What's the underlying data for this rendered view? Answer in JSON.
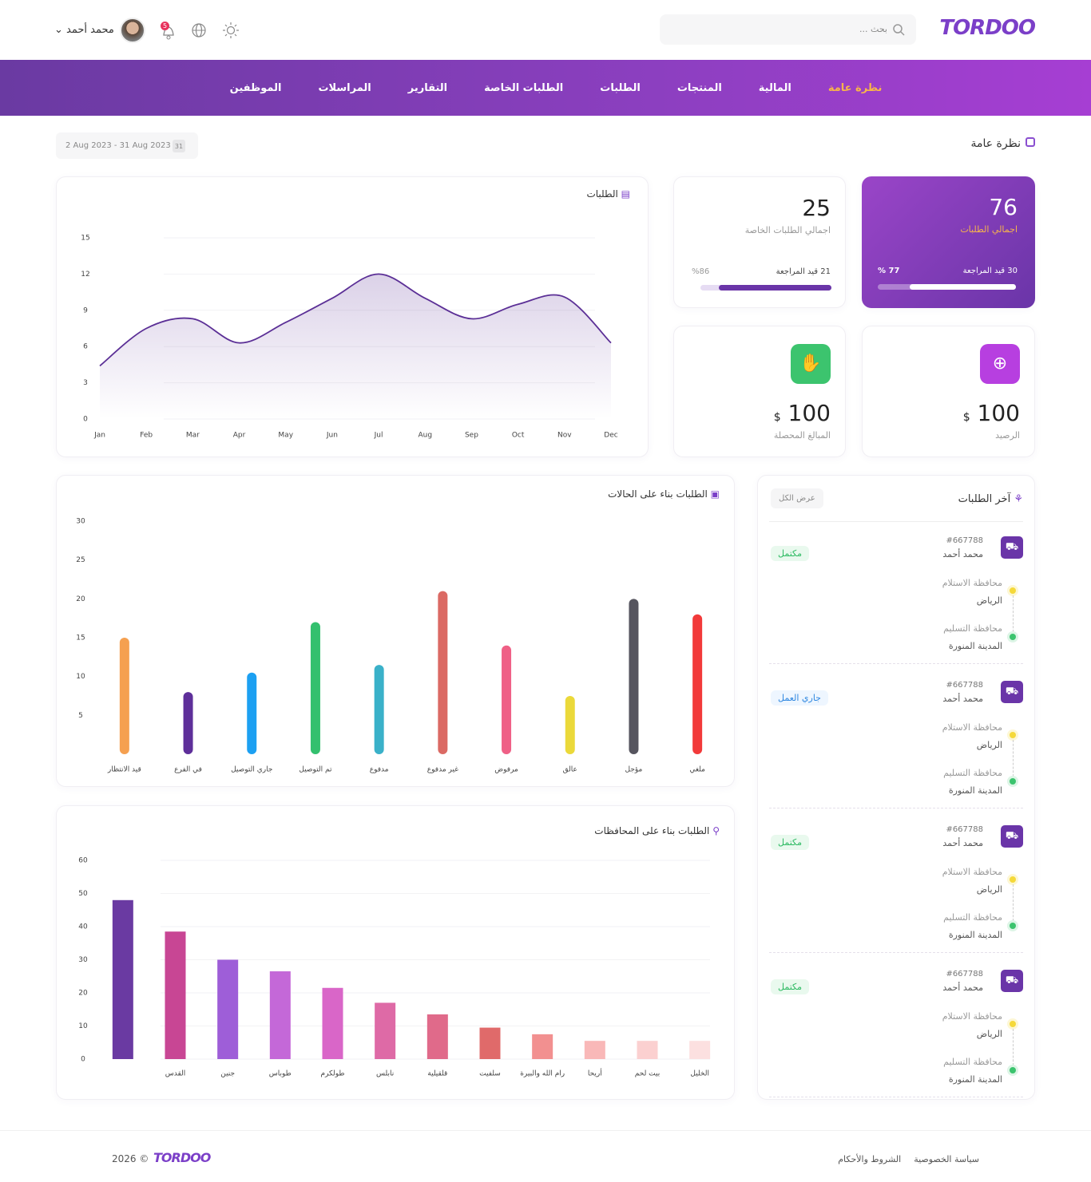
{
  "header": {
    "logo": "TORDOO",
    "search_placeholder": "بحث ...",
    "user_name": "محمد أحمد",
    "notifications": "5"
  },
  "nav": [
    "نظرة عامة",
    "المالية",
    "المنتجات",
    "الطلبات",
    "الطلبات الخاصة",
    "التقارير",
    "المراسلات",
    "الموظفين"
  ],
  "page_title": "نظرة عامة",
  "date_range": "2 Aug 2023 - 31 Aug 2023",
  "date_icon": "31",
  "stats": [
    {
      "value": 76,
      "label": "اجمالي الطلبات",
      "pending": 30,
      "pending_label": "قيد المراجعة",
      "progress": {
        "value": 77,
        "label": "% 77"
      }
    },
    {
      "value": 25,
      "label": "اجمالي الطلبات الخاصة",
      "pending": 21,
      "pending_label": "قيد المراجعة",
      "progress": {
        "value": 86,
        "label": "%86"
      }
    },
    {
      "value": 100,
      "currency": "$",
      "label": "الرصيد"
    },
    {
      "value": 100,
      "currency": "$",
      "label": "المبالغ المحصلة"
    }
  ],
  "chart_data": [
    {
      "type": "line",
      "title": "الطلبات",
      "categories": [
        "Jan",
        "Feb",
        "Mar",
        "Apr",
        "May",
        "Jun",
        "Jul",
        "Aug",
        "Sep",
        "Oct",
        "Nov",
        "Dec"
      ],
      "values": [
        4.4,
        7.5,
        8.3,
        6.3,
        8,
        10,
        12,
        10,
        8.3,
        9.5,
        10.1,
        6.3
      ],
      "color": "#5b2f96",
      "ylim": [
        0,
        15
      ],
      "yticks": [
        0,
        3,
        6,
        9,
        12,
        15
      ],
      "grid": true
    },
    {
      "type": "bar",
      "title": "الطلبات بناء على الحالات",
      "categories": [
        "قيد الانتظار",
        "في الفرع",
        "جاري التوصيل",
        "تم التوصيل",
        "مدفوع",
        "غير مدفوع",
        "مرفوض",
        "عالق",
        "مؤجل",
        "ملغي"
      ],
      "values": [
        15,
        8,
        10.5,
        17,
        11.5,
        21,
        14,
        7.5,
        20,
        18
      ],
      "colors": [
        "#f5a050",
        "#5e2f9a",
        "#1ca0f2",
        "#33c06e",
        "#3ab1c9",
        "#db6a64",
        "#ef6086",
        "#ebd93a",
        "#56555f",
        "#f23a3a"
      ],
      "ylim": [
        0,
        30
      ],
      "yticks": [
        5,
        10,
        15,
        20,
        25,
        30
      ],
      "grid": false
    },
    {
      "type": "bar",
      "title": "الطلبات بناء على المحافظات",
      "categories": [
        null,
        "القدس",
        "جنين",
        "طوباس",
        "طولكرم",
        "نابلس",
        "قلقيلية",
        "سلفيت",
        "رام الله والبيرة",
        "أريحا",
        "بيت لحم",
        "الخليل"
      ],
      "values": [
        48,
        38.5,
        30,
        26.5,
        21.5,
        17,
        13.5,
        9.5,
        7.5,
        5.5,
        5.5,
        5.5
      ],
      "colors": [
        "#6a3aa2",
        "#c84694",
        "#9e5ed8",
        "#c468d8",
        "#d966c8",
        "#de6aa6",
        "#e06a8a",
        "#e06a6a",
        "#f29090",
        "#f9b8b8",
        "#fbd0d0",
        "#fce0e0"
      ],
      "ylim": [
        0,
        60
      ],
      "yticks": [
        0,
        10,
        20,
        30,
        40,
        50,
        60
      ],
      "grid": true
    }
  ],
  "latest_orders": {
    "title": "آخر الطلبات",
    "view_all": "عرض الكل",
    "orders": [
      {
        "id": "#667788",
        "name": "محمد أحمد",
        "status": "مكتمل",
        "pickup_label": "محافظة الاستلام",
        "pickup": "الرياض",
        "delivery_label": "محافظة التسليم",
        "delivery": "المدينة المنورة"
      },
      {
        "id": "#667788",
        "name": "محمد أحمد",
        "status": "جاري العمل",
        "pickup_label": "محافظة الاستلام",
        "pickup": "الرياض",
        "delivery_label": "محافظة التسليم",
        "delivery": "المدينة المنورة"
      },
      {
        "id": "#667788",
        "name": "محمد أحمد",
        "status": "مكتمل",
        "pickup_label": "محافظة الاستلام",
        "pickup": "الرياض",
        "delivery_label": "محافظة التسليم",
        "delivery": "المدينة المنورة"
      },
      {
        "id": "#667788",
        "name": "محمد أحمد",
        "status": "مكتمل",
        "pickup_label": "محافظة الاستلام",
        "pickup": "الرياض",
        "delivery_label": "محافظة التسليم",
        "delivery": "المدينة المنورة"
      }
    ]
  },
  "footer": {
    "copyright": "2026 ©",
    "logo": "TORDOO",
    "links": [
      "سياسة الخصوصية",
      "الشروط والأحكام"
    ]
  }
}
